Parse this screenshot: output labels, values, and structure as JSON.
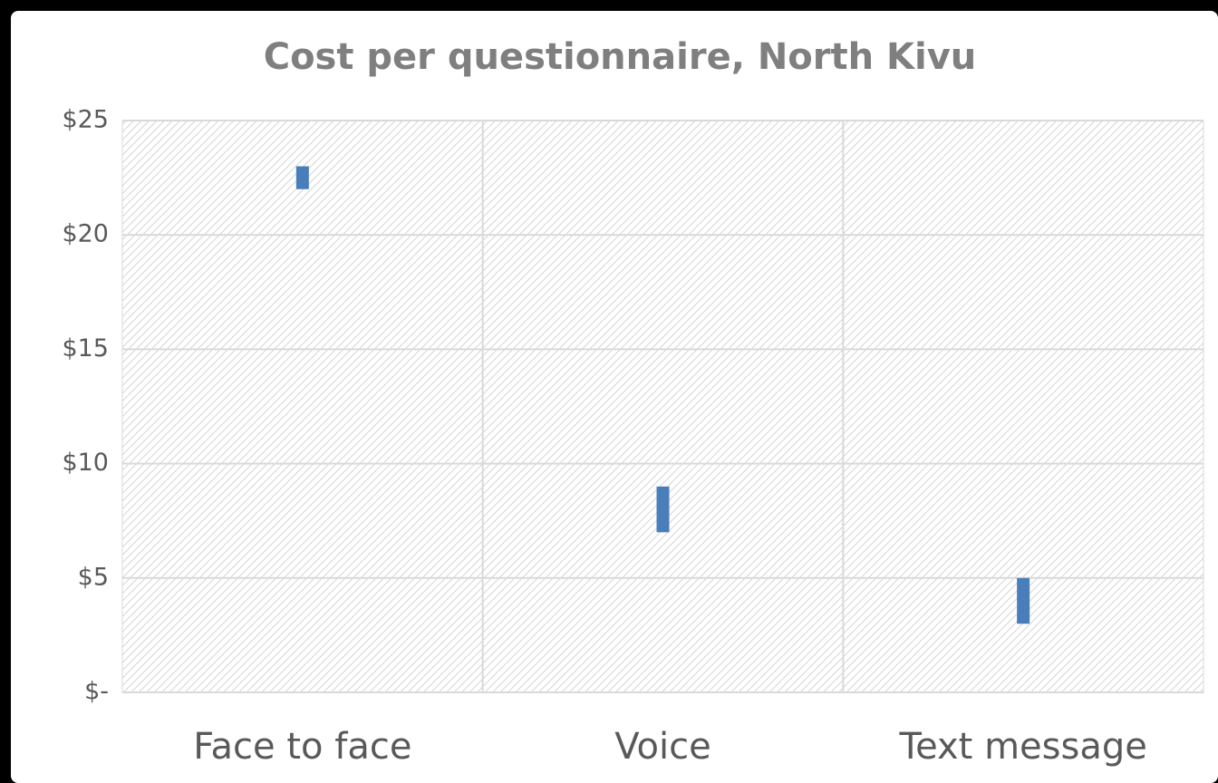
{
  "chart_data": {
    "type": "floating_bar",
    "title": "Cost per questionnaire, North Kivu",
    "categories": [
      "Face to face",
      "Voice",
      "Text message"
    ],
    "low": [
      22,
      7,
      3
    ],
    "high": [
      23,
      9,
      5
    ],
    "color": "#4a7ebb",
    "ylim": [
      0,
      25
    ],
    "yticks": [
      {
        "value": 0,
        "label": "$-"
      },
      {
        "value": 5,
        "label": "$5"
      },
      {
        "value": 10,
        "label": "$10"
      },
      {
        "value": 15,
        "label": "$15"
      },
      {
        "value": 20,
        "label": "$20"
      },
      {
        "value": 25,
        "label": "$25"
      }
    ],
    "grid": true
  }
}
